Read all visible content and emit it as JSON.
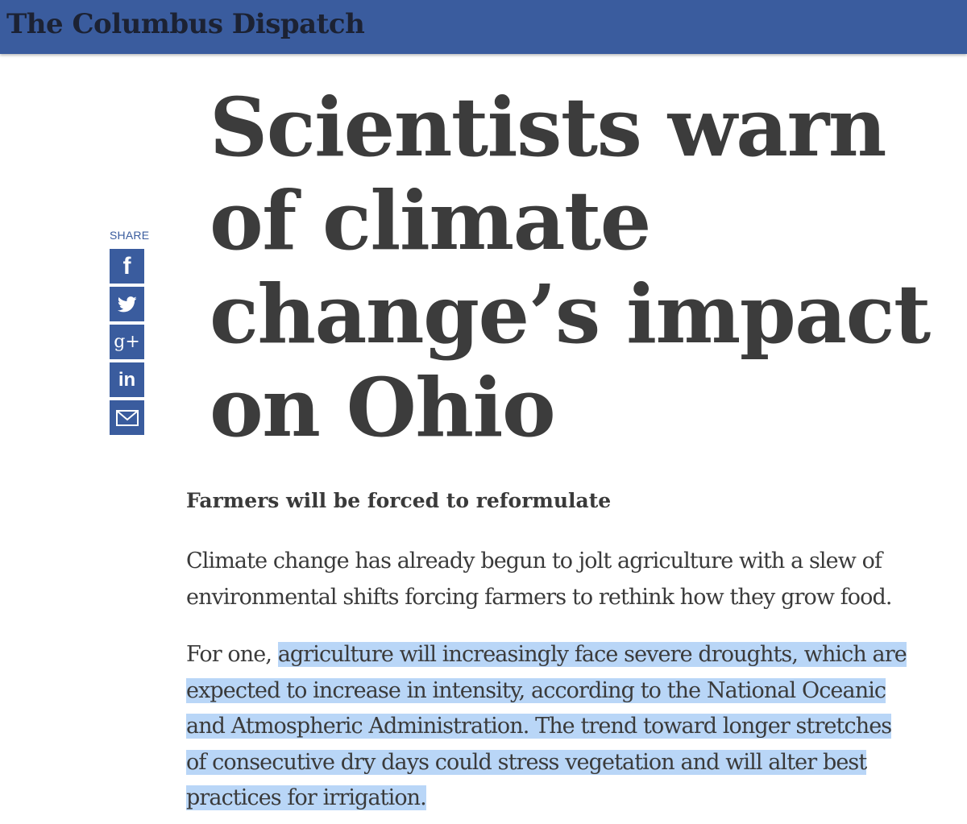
{
  "masthead": {
    "logo_text": "The Columbus Dispatch",
    "bar_color": "#3a5c9e"
  },
  "share": {
    "label": "SHARE",
    "buttons": [
      {
        "icon": "facebook-icon",
        "glyph": "f"
      },
      {
        "icon": "twitter-icon"
      },
      {
        "icon": "google-plus-icon",
        "glyph": "g+"
      },
      {
        "icon": "linkedin-icon",
        "glyph": "in"
      },
      {
        "icon": "email-icon"
      }
    ],
    "button_color": "#3a5c9e"
  },
  "article": {
    "headline_lines": [
      "Scientists warn",
      "of climate",
      "change’s impact",
      "on Ohio"
    ],
    "subhead": "Farmers will be forced to reformulate",
    "paragraph1_lines": [
      "Climate change has already begun to jolt agriculture with a slew of",
      "environmental shifts forcing farmers to rethink how they grow food."
    ],
    "paragraph2_prefix": "For one, ",
    "paragraph2_highlighted_lines": [
      "agriculture will increasingly face severe droughts, which are",
      "expected to increase in intensity, according to the National Oceanic",
      "and Atmospheric Administration. The trend toward longer stretches",
      "of consecutive dry days could stress vegetation and will alter best",
      "practices for irrigation."
    ],
    "highlight_color": "#b9d6f7"
  }
}
